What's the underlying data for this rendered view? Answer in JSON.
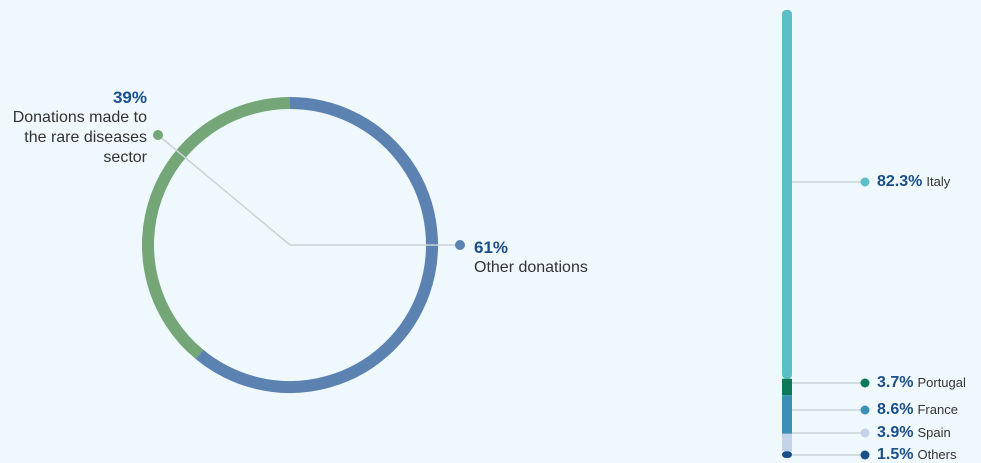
{
  "chart_data": [
    {
      "type": "pie",
      "categories": [
        "Other donations",
        "Donations made to the rare diseases sector"
      ],
      "values": [
        61,
        39
      ],
      "value_labels": [
        "61%",
        "39%"
      ],
      "colors": [
        "#5b82b0",
        "#74a678"
      ]
    },
    {
      "type": "bar",
      "stacked": true,
      "categories": [
        "Italy",
        "Portugal",
        "France",
        "Spain",
        "Others"
      ],
      "values": [
        82.3,
        3.7,
        8.6,
        3.9,
        1.5
      ],
      "value_labels": [
        "82.3%",
        "3.7%",
        "8.6%",
        "3.9%",
        "1.5%"
      ],
      "colors": [
        "#5bbfc8",
        "#0e7a5a",
        "#3d8fb5",
        "#c5d3e8",
        "#1a4f8a"
      ]
    }
  ]
}
